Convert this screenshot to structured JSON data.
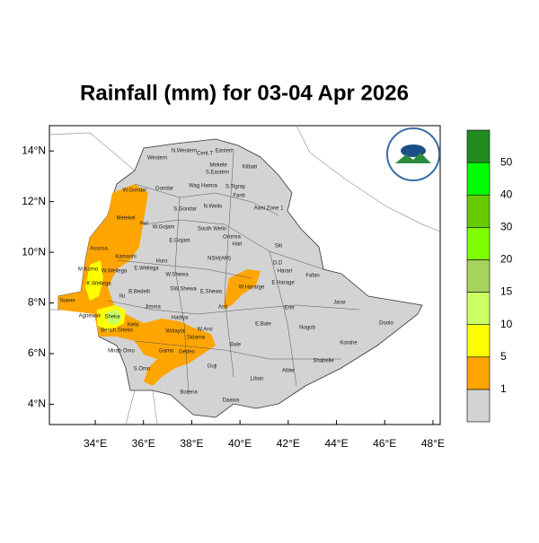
{
  "chart_data": {
    "type": "map",
    "title": "Rainfall (mm) for 03-04 Apr 2026",
    "xticks": [
      {
        "value": 34,
        "label": "34°E"
      },
      {
        "value": 36,
        "label": "36°E"
      },
      {
        "value": 38,
        "label": "38°E"
      },
      {
        "value": 40,
        "label": "40°E"
      },
      {
        "value": 42,
        "label": "42°E"
      },
      {
        "value": 44,
        "label": "44°E"
      },
      {
        "value": 46,
        "label": "46°E"
      },
      {
        "value": 48,
        "label": "48°E"
      }
    ],
    "yticks": [
      {
        "value": 4,
        "label": "4°N"
      },
      {
        "value": 6,
        "label": "6°N"
      },
      {
        "value": 8,
        "label": "8°N"
      },
      {
        "value": 10,
        "label": "10°N"
      },
      {
        "value": 12,
        "label": "12°N"
      },
      {
        "value": 14,
        "label": "14°N"
      }
    ],
    "xlim": [
      32.1,
      48.3
    ],
    "ylim": [
      3.2,
      15
    ],
    "legend": {
      "levels": [
        1,
        5,
        10,
        15,
        20,
        30,
        40,
        50
      ],
      "colors": [
        "#d3d3d3",
        "#ffa500",
        "#ffff00",
        "#ccff66",
        "#a6d25e",
        "#7fff00",
        "#66cc00",
        "#00ff00",
        "#228b22"
      ]
    },
    "regions": [
      "Western",
      "N.Western",
      "Cent.T",
      "Eastern",
      "Mekele",
      "S.Eastern",
      "Kilbati",
      "W.Gondar",
      "Gondar",
      "Wag Hamra",
      "S.Tigray",
      "Fanti",
      "Metekel",
      "S.Gondar",
      "N.Wello",
      "Awsi Zone 1",
      "Awi",
      "W.Gojam",
      "E.Gojam",
      "South Wello",
      "Oromia",
      "Hari",
      "Siti",
      "Assosa",
      "Kamashi",
      "Horo",
      "NSH(AM)",
      "D.D",
      "Harari",
      "Fafan",
      "M.Komo",
      "W.Wellega",
      "E.Wellega",
      "W.Shewa",
      "K.Wellega",
      "B.Bedelli",
      "SW.Shewa",
      "E.Shewa",
      "W.Hararge",
      "E.Harage",
      "Jarar",
      "Nuwer",
      "Ilu",
      "Jimma",
      "Arsi",
      "Erer",
      "Agnewak",
      "Sheka",
      "Hadiya",
      "Kefa",
      "E.Bale",
      "Nogob",
      "Doolo",
      "Bench Sheko",
      "Wolayta",
      "W.Arsi",
      "Mirab Omo",
      "Gamo",
      "Sidama",
      "Bale",
      "Korahe",
      "Shabelle",
      "S.Omo",
      "Gedeo",
      "Liban",
      "Afder",
      "Guji",
      "Borena",
      "Daawa"
    ]
  }
}
